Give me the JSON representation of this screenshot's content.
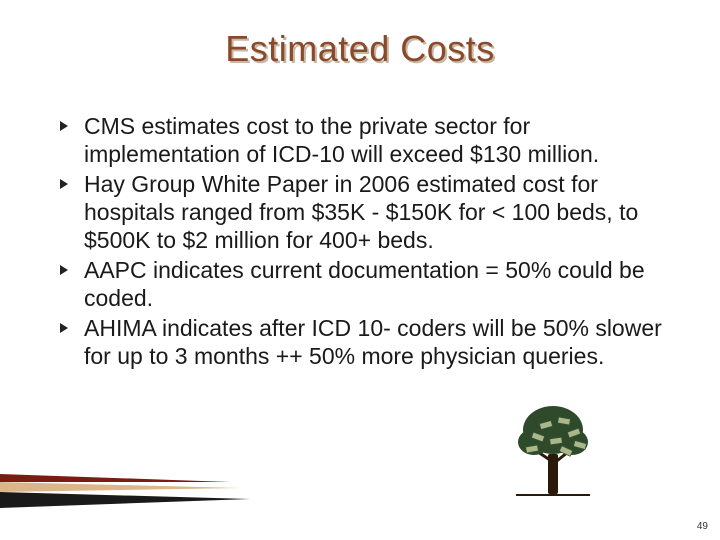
{
  "title": {
    "text": "Estimated Costs",
    "color": "#8a4a2a",
    "shadow_color": "#c6b8a6",
    "fontsize": 36
  },
  "bullets": [
    "CMS estimates cost to the private sector for implementation of ICD-10 will exceed $130 million.",
    "Hay Group White Paper in 2006 estimated cost for hospitals ranged from $35K - $150K for < 100 beds, to $500K to $2 million for 400+ beds.",
    "AAPC indicates current documentation = 50% could be coded.",
    "AHIMA indicates after ICD 10- coders will be 50% slower for up to 3 months ++ 50% more physician queries."
  ],
  "page_number": "49",
  "decor": {
    "wedge_colors": {
      "top": "#7a1c12",
      "mid": "#dcb68a",
      "bottom": "#1a1a1a"
    },
    "tree": {
      "trunk_color": "#2a1a0a",
      "foliage_color": "#2f4a2a",
      "bill_color": "#a8b88a",
      "bill_stroke": "#3a5232"
    }
  },
  "body_text_color": "#1a1a1a",
  "body_fontsize": 23
}
